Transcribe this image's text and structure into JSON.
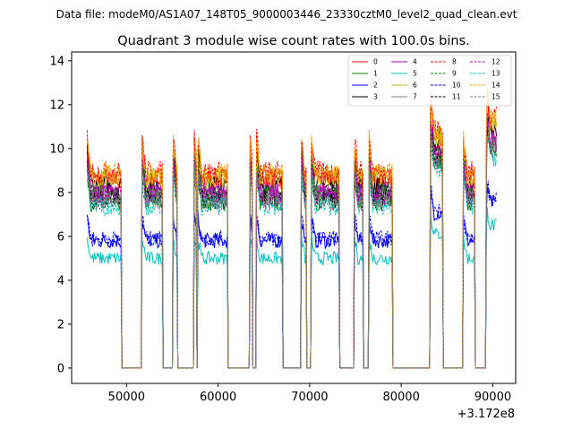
{
  "chart_data": {
    "type": "line",
    "suptitle": "Data file: modeM0/AS1A07_148T05_9000003446_23330cztM0_level2_quad_clean.evt",
    "title": "Quadrant 3 module wise count rates with 100.0s bins.",
    "xlabel": "",
    "ylabel": "",
    "x_offset_label": "+3.172e8",
    "xlim": [
      44000,
      92500
    ],
    "ylim": [
      -0.7,
      14.4
    ],
    "xticks": [
      50000,
      60000,
      70000,
      80000,
      90000
    ],
    "xtick_labels": [
      "50000",
      "60000",
      "70000",
      "80000",
      "90000"
    ],
    "yticks": [
      0,
      2,
      4,
      6,
      8,
      10,
      12,
      14
    ],
    "ytick_labels": [
      "0",
      "2",
      "4",
      "6",
      "8",
      "10",
      "12",
      "14"
    ],
    "legend_location": "upper right",
    "series": [
      {
        "name": "0",
        "color": "#ff0000",
        "dash": "solid",
        "level": 8.6
      },
      {
        "name": "1",
        "color": "#008000",
        "dash": "solid",
        "level": 7.6
      },
      {
        "name": "2",
        "color": "#0000ff",
        "dash": "solid",
        "level": 5.8
      },
      {
        "name": "3",
        "color": "#000000",
        "dash": "solid",
        "level": 8.3
      },
      {
        "name": "4",
        "color": "#bf00bf",
        "dash": "solid",
        "level": 8.0
      },
      {
        "name": "5",
        "color": "#00bfbf",
        "dash": "solid",
        "level": 5.0
      },
      {
        "name": "6",
        "color": "#bfbf00",
        "dash": "solid",
        "level": 8.7
      },
      {
        "name": "7",
        "color": "#808080",
        "dash": "solid",
        "level": 7.8
      },
      {
        "name": "8",
        "color": "#ff0000",
        "dash": "dashed",
        "level": 8.9
      },
      {
        "name": "9",
        "color": "#008000",
        "dash": "dashed",
        "level": 7.9
      },
      {
        "name": "10",
        "color": "#0000ff",
        "dash": "dashed",
        "level": 5.9
      },
      {
        "name": "11",
        "color": "#000000",
        "dash": "dashed",
        "level": 7.7
      },
      {
        "name": "12",
        "color": "#bf00bf",
        "dash": "dashed",
        "level": 7.9
      },
      {
        "name": "13",
        "color": "#00bfbf",
        "dash": "dashed",
        "level": 7.4
      },
      {
        "name": "14",
        "color": "#ff9900",
        "dash": "dashed",
        "level": 8.8
      },
      {
        "name": "15",
        "color": "#808080",
        "dash": "dashed",
        "level": 7.6
      }
    ],
    "active_segments": [
      [
        45700,
        49400
      ],
      [
        51700,
        53900
      ],
      [
        55100,
        55500
      ],
      [
        57400,
        57600
      ],
      [
        57800,
        61000
      ],
      [
        63500,
        63700
      ],
      [
        64200,
        67000
      ],
      [
        69100,
        69600
      ],
      [
        70200,
        73200
      ],
      [
        74900,
        75800
      ],
      [
        76500,
        79000
      ],
      [
        83200,
        84500
      ],
      [
        86800,
        88000
      ],
      [
        89300,
        90400
      ]
    ]
  }
}
